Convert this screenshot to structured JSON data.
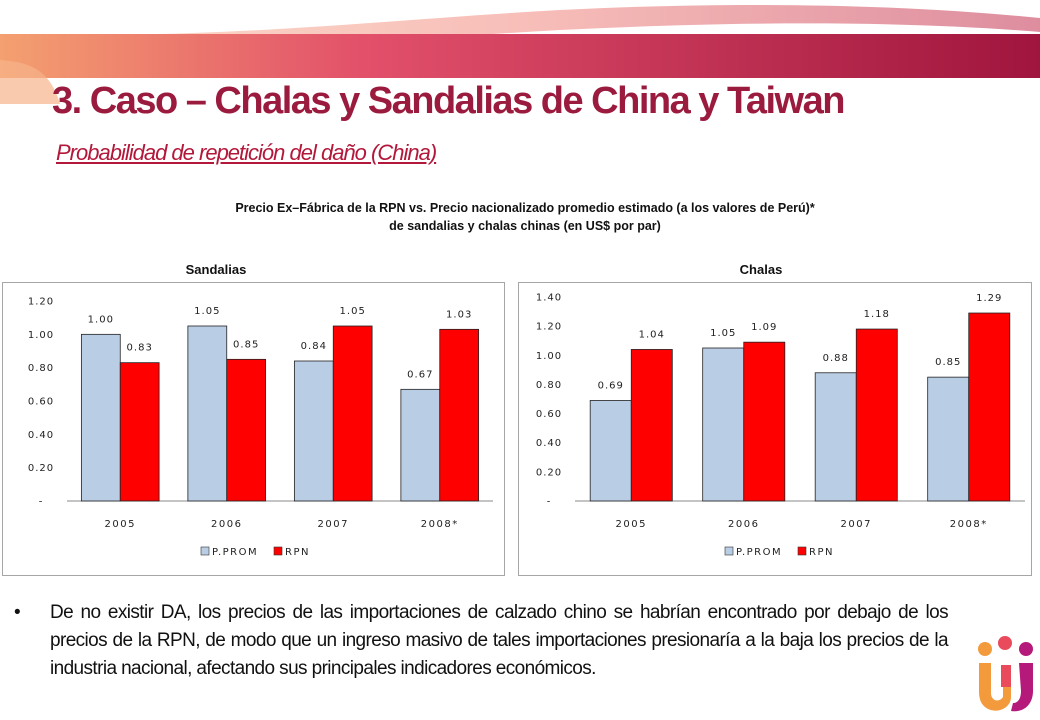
{
  "header": {
    "title": "3. Caso – Chalas y Sandalias de China y Taiwan",
    "subtitle": "Probabilidad de repetición del daño (China)",
    "chart_heading_line1": "Precio Ex–Fábrica de la RPN vs. Precio nacionalizado promedio estimado (a los valores de Perú)*",
    "chart_heading_line2": "de sandalias y chalas chinas (en US$ por par)"
  },
  "colors": {
    "brand": "#9b1b3e",
    "p_prom": "#b9cde5",
    "rpn": "#ff0000"
  },
  "chart_data": [
    {
      "type": "bar",
      "title": "Sandalias",
      "categories": [
        "2005",
        "2006",
        "2007",
        "2008*"
      ],
      "series": [
        {
          "name": "P.PROM",
          "values": [
            1.0,
            1.05,
            0.84,
            0.67
          ]
        },
        {
          "name": "RPN",
          "values": [
            0.83,
            0.85,
            1.05,
            1.03
          ]
        }
      ],
      "ylim": [
        0,
        1.2
      ],
      "yticks": [
        "-",
        "0.20",
        "0.40",
        "0.60",
        "0.80",
        "1.00",
        "1.20"
      ],
      "legend": "bottom",
      "grid": false
    },
    {
      "type": "bar",
      "title": "Chalas",
      "categories": [
        "2005",
        "2006",
        "2007",
        "2008*"
      ],
      "series": [
        {
          "name": "P.PROM",
          "values": [
            0.69,
            1.05,
            0.88,
            0.85
          ]
        },
        {
          "name": "RPN",
          "values": [
            1.04,
            1.09,
            1.18,
            1.29
          ]
        }
      ],
      "ylim": [
        0,
        1.4
      ],
      "yticks": [
        "-",
        "0.20",
        "0.40",
        "0.60",
        "0.80",
        "1.00",
        "1.20",
        "1.40"
      ],
      "legend": "bottom",
      "grid": false
    }
  ],
  "body": {
    "bullet_symbol": "•",
    "bullet_text": "De no existir DA, los precios de las importaciones de calzado chino se habrían encontrado por debajo de los precios de la RPN, de modo que un ingreso masivo de tales importaciones presionaría a la baja los precios de la industria nacional, afectando sus principales indicadores económicos."
  }
}
